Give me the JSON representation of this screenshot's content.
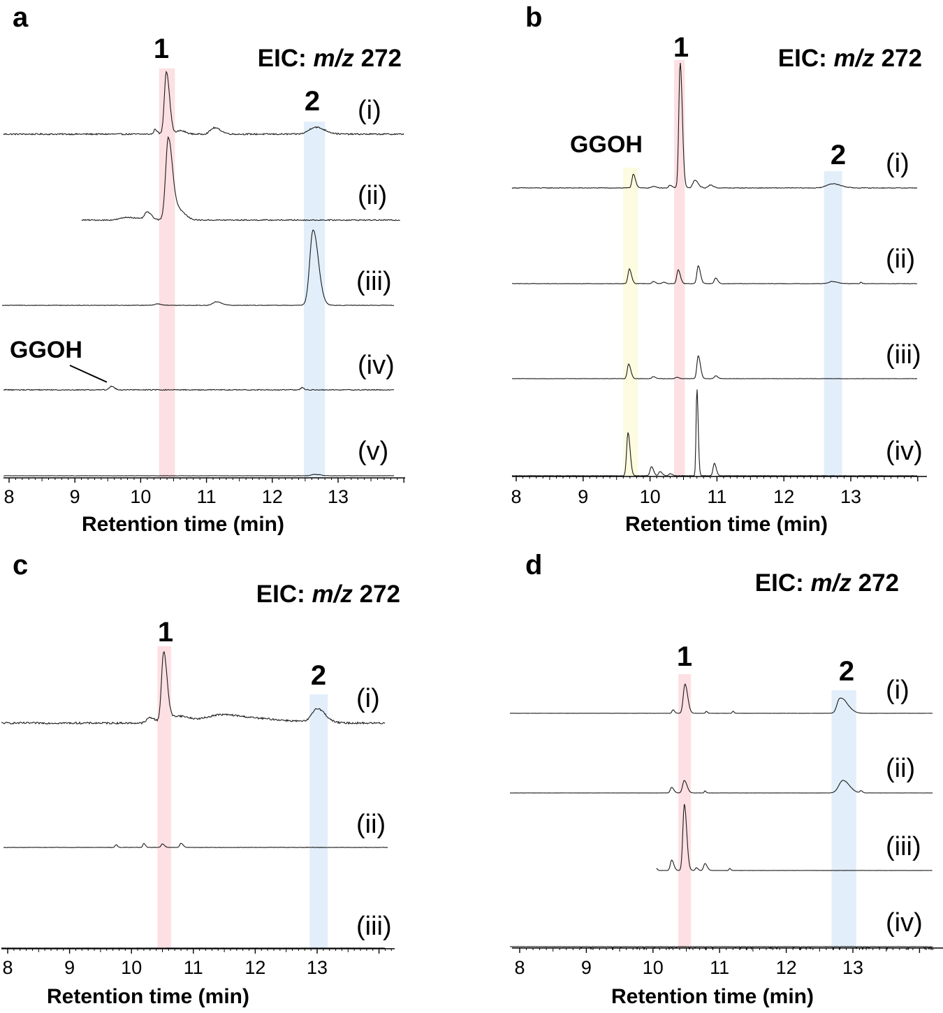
{
  "chart_data": [
    {
      "type": "line",
      "panel": "a",
      "title": "EIC: m/z 272",
      "title_prefix": "EIC: ",
      "title_italic": "m/z",
      "title_suffix": " 272",
      "xlabel": "Retention time (min)",
      "xlim": [
        7.95,
        14.0
      ],
      "xticks": [
        8,
        9,
        10,
        11,
        12,
        13
      ],
      "highlights": [
        {
          "label": "1",
          "range": [
            10.28,
            10.52
          ],
          "color": "#fde0e3"
        },
        {
          "label": "2",
          "range": [
            12.48,
            12.8
          ],
          "color": "#e2eef9"
        }
      ],
      "annotations": [
        {
          "text": "GGOH",
          "x": 9.55,
          "trace": "(iv)"
        }
      ],
      "series": [
        {
          "name": "(i)",
          "noise": 1.0,
          "end": 14.0,
          "peaks": [
            {
              "x": 10.22,
              "h": 7,
              "w": 0.02
            },
            {
              "x": 10.39,
              "h": 90,
              "w": 0.03
            },
            {
              "x": 10.6,
              "h": 5,
              "w": 0.05
            },
            {
              "x": 11.12,
              "h": 9,
              "w": 0.06
            },
            {
              "x": 12.65,
              "h": 10,
              "w": 0.09
            }
          ]
        },
        {
          "name": "(ii)",
          "noise": 0.8,
          "start": 9.1,
          "end": 13.95,
          "peaks": [
            {
              "x": 9.8,
              "h": 4,
              "w": 0.1
            },
            {
              "x": 10.1,
              "h": 11,
              "w": 0.04
            },
            {
              "x": 10.42,
              "h": 118,
              "w": 0.04
            },
            {
              "x": 10.58,
              "h": 14,
              "w": 0.06
            }
          ]
        },
        {
          "name": "(iii)",
          "noise": 0.4,
          "end": 13.85,
          "peaks": [
            {
              "x": 10.25,
              "h": 2,
              "w": 0.04
            },
            {
              "x": 11.15,
              "h": 5,
              "w": 0.05
            },
            {
              "x": 12.62,
              "h": 108,
              "w": 0.05
            }
          ]
        },
        {
          "name": "(iv)",
          "noise": 0.7,
          "end": 13.85,
          "peaks": [
            {
              "x": 9.55,
              "h": 5,
              "w": 0.03
            },
            {
              "x": 12.45,
              "h": 3,
              "w": 0.02
            }
          ]
        },
        {
          "name": "(v)",
          "noise": 0.25,
          "end": 13.85,
          "peaks": [
            {
              "x": 12.65,
              "h": 2,
              "w": 0.05
            }
          ]
        }
      ]
    },
    {
      "type": "line",
      "panel": "b",
      "title": "EIC: m/z 272",
      "title_prefix": "EIC: ",
      "title_italic": "m/z",
      "title_suffix": " 272",
      "xlabel": "Retention time (min)",
      "xlim": [
        7.95,
        14.0
      ],
      "xticks": [
        8,
        9,
        10,
        11,
        12,
        13
      ],
      "highlights": [
        {
          "label": "GGOH",
          "range": [
            9.6,
            9.82
          ],
          "color": "#fdfbe0"
        },
        {
          "label": "1",
          "range": [
            10.36,
            10.52
          ],
          "color": "#fde0e3"
        },
        {
          "label": "2",
          "range": [
            12.6,
            12.87
          ],
          "color": "#e2eef9"
        }
      ],
      "annotations": [],
      "series": [
        {
          "name": "(i)",
          "noise": 0.5,
          "end": 14.0,
          "peaks": [
            {
              "x": 9.75,
              "h": 20,
              "w": 0.02
            },
            {
              "x": 10.05,
              "h": 2,
              "w": 0.03
            },
            {
              "x": 10.3,
              "h": 4,
              "w": 0.02
            },
            {
              "x": 10.45,
              "h": 180,
              "w": 0.02
            },
            {
              "x": 10.67,
              "h": 11,
              "w": 0.03
            },
            {
              "x": 10.9,
              "h": 4,
              "w": 0.03
            },
            {
              "x": 12.72,
              "h": 6,
              "w": 0.08
            }
          ]
        },
        {
          "name": "(ii)",
          "noise": 0.3,
          "end": 14.0,
          "peaks": [
            {
              "x": 9.69,
              "h": 21,
              "w": 0.02
            },
            {
              "x": 10.05,
              "h": 3,
              "w": 0.02
            },
            {
              "x": 10.2,
              "h": 2,
              "w": 0.02
            },
            {
              "x": 10.42,
              "h": 20,
              "w": 0.02
            },
            {
              "x": 10.72,
              "h": 26,
              "w": 0.02
            },
            {
              "x": 10.98,
              "h": 8,
              "w": 0.02
            },
            {
              "x": 12.72,
              "h": 3,
              "w": 0.05
            },
            {
              "x": 13.15,
              "h": 2,
              "w": 0.01
            }
          ]
        },
        {
          "name": "(iii)",
          "noise": 0.25,
          "end": 14.0,
          "peaks": [
            {
              "x": 9.68,
              "h": 21,
              "w": 0.02
            },
            {
              "x": 10.05,
              "h": 3,
              "w": 0.02
            },
            {
              "x": 10.4,
              "h": 2,
              "w": 0.02
            },
            {
              "x": 10.72,
              "h": 33,
              "w": 0.02
            },
            {
              "x": 10.98,
              "h": 4,
              "w": 0.02
            }
          ]
        },
        {
          "name": "(iv)",
          "noise": 0.25,
          "end": 14.0,
          "peaks": [
            {
              "x": 9.67,
              "h": 62,
              "w": 0.02
            },
            {
              "x": 10.02,
              "h": 13,
              "w": 0.02
            },
            {
              "x": 10.15,
              "h": 6,
              "w": 0.02
            },
            {
              "x": 10.3,
              "h": 3,
              "w": 0.02
            },
            {
              "x": 10.7,
              "h": 126,
              "w": 0.012
            },
            {
              "x": 10.96,
              "h": 18,
              "w": 0.018
            }
          ]
        }
      ]
    },
    {
      "type": "line",
      "panel": "c",
      "title": "EIC: m/z 272",
      "title_prefix": "EIC: ",
      "title_italic": "m/z",
      "title_suffix": " 272",
      "xlabel": "Retention time (min)",
      "xlim": [
        7.95,
        14.2
      ],
      "xticks": [
        8,
        9,
        10,
        11,
        12,
        13
      ],
      "highlights": [
        {
          "label": "1",
          "range": [
            10.42,
            10.64
          ],
          "color": "#fde0e3"
        },
        {
          "label": "2",
          "range": [
            12.88,
            13.17
          ],
          "color": "#e2eef9"
        }
      ],
      "annotations": [],
      "series": [
        {
          "name": "(i)",
          "noise": 1.3,
          "end": 14.1,
          "peaks": [
            {
              "x": 10.3,
              "h": 8,
              "w": 0.05
            },
            {
              "x": 10.52,
              "h": 100,
              "w": 0.035
            },
            {
              "x": 10.75,
              "h": 10,
              "w": 0.12
            },
            {
              "x": 11.45,
              "h": 12,
              "w": 0.25
            },
            {
              "x": 12.25,
              "h": 4,
              "w": 0.3
            },
            {
              "x": 13.0,
              "h": 20,
              "w": 0.08
            }
          ]
        },
        {
          "name": "(ii)",
          "noise": 0.3,
          "end": 14.15,
          "peaks": [
            {
              "x": 9.75,
              "h": 4,
              "w": 0.015
            },
            {
              "x": 10.2,
              "h": 6,
              "w": 0.015
            },
            {
              "x": 10.5,
              "h": 5,
              "w": 0.02
            },
            {
              "x": 10.8,
              "h": 6,
              "w": 0.02
            }
          ]
        },
        {
          "name": "(iii)",
          "noise": 0.1,
          "end": 14.1,
          "peaks": []
        }
      ]
    },
    {
      "type": "line",
      "panel": "d",
      "title": "EIC: m/z 272",
      "title_prefix": "EIC: ",
      "title_italic": "m/z",
      "title_suffix": " 272",
      "xlabel": "Retention time (min)",
      "xlim": [
        7.95,
        14.2
      ],
      "xticks": [
        8,
        9,
        10,
        11,
        12,
        13
      ],
      "highlights": [
        {
          "label": "1",
          "range": [
            10.38,
            10.57
          ],
          "color": "#fde0e3"
        },
        {
          "label": "2",
          "range": [
            12.68,
            13.05
          ],
          "color": "#e2eef9"
        }
      ],
      "annotations": [],
      "series": [
        {
          "name": "(i)",
          "noise": 0.1,
          "end": 14.2,
          "peaks": [
            {
              "x": 10.3,
              "h": 5,
              "w": 0.015
            },
            {
              "x": 10.48,
              "h": 42,
              "w": 0.025
            },
            {
              "x": 10.8,
              "h": 3,
              "w": 0.01
            },
            {
              "x": 11.2,
              "h": 3,
              "w": 0.01
            },
            {
              "x": 12.8,
              "h": 20,
              "w": 0.04
            },
            {
              "x": 12.9,
              "h": 10,
              "w": 0.05
            }
          ]
        },
        {
          "name": "(ii)",
          "noise": 0.1,
          "end": 14.2,
          "peaks": [
            {
              "x": 10.28,
              "h": 8,
              "w": 0.02
            },
            {
              "x": 10.47,
              "h": 18,
              "w": 0.025
            },
            {
              "x": 10.78,
              "h": 3,
              "w": 0.01
            },
            {
              "x": 12.85,
              "h": 18,
              "w": 0.06
            },
            {
              "x": 13.12,
              "h": 3,
              "w": 0.015
            }
          ]
        },
        {
          "name": "(iii)",
          "noise": 0.1,
          "start": 10.05,
          "end": 14.2,
          "peaks": [
            {
              "x": 10.05,
              "h": 3,
              "w": 0.01
            },
            {
              "x": 10.28,
              "h": 15,
              "w": 0.02
            },
            {
              "x": 10.47,
              "h": 95,
              "w": 0.022
            },
            {
              "x": 10.65,
              "h": 4,
              "w": 0.015
            },
            {
              "x": 10.78,
              "h": 10,
              "w": 0.02
            },
            {
              "x": 11.15,
              "h": 3,
              "w": 0.01
            }
          ]
        },
        {
          "name": "(iv)",
          "noise": 0.1,
          "end": 14.2,
          "spikes": true,
          "peaks": []
        }
      ]
    }
  ]
}
